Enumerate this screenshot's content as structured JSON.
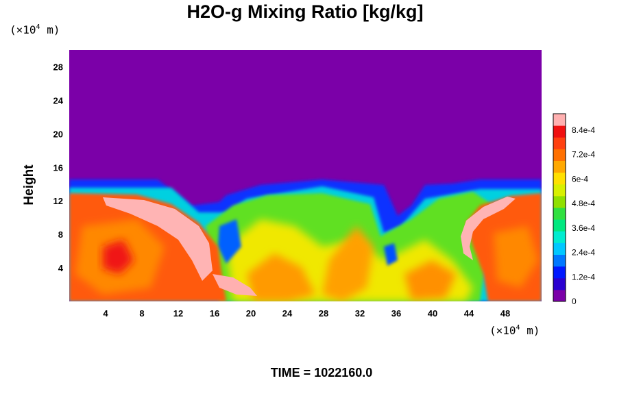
{
  "chart_data": {
    "type": "heatmap",
    "title": "H2O-g Mixing Ratio [kg/kg]",
    "ylabel": "Height",
    "xlabel": "",
    "x_unit": {
      "prefix": "(×10",
      "exp": "4",
      "suffix": " m)"
    },
    "y_unit": {
      "prefix": "(×10",
      "exp": "4",
      "suffix": " m)"
    },
    "xlim": [
      0,
      52
    ],
    "ylim": [
      0,
      30
    ],
    "x_ticks": [
      {
        "value": 4,
        "label": "4"
      },
      {
        "value": 8,
        "label": "8"
      },
      {
        "value": 12,
        "label": "12"
      },
      {
        "value": 16,
        "label": "16"
      },
      {
        "value": 20,
        "label": "20"
      },
      {
        "value": 24,
        "label": "24"
      },
      {
        "value": 28,
        "label": "28"
      },
      {
        "value": 32,
        "label": "32"
      },
      {
        "value": 36,
        "label": "36"
      },
      {
        "value": 40,
        "label": "40"
      },
      {
        "value": 44,
        "label": "44"
      },
      {
        "value": 48,
        "label": "48"
      }
    ],
    "y_ticks": [
      {
        "value": 4,
        "label": "4"
      },
      {
        "value": 8,
        "label": "8"
      },
      {
        "value": 12,
        "label": "12"
      },
      {
        "value": 16,
        "label": "16"
      },
      {
        "value": 20,
        "label": "20"
      },
      {
        "value": 24,
        "label": "24"
      },
      {
        "value": 28,
        "label": "28"
      }
    ],
    "colorbar": {
      "min": 0,
      "max": 0.00092,
      "ticks": [
        {
          "value": 0,
          "label": "0"
        },
        {
          "value": 0.00012,
          "label": "1.2e-4"
        },
        {
          "value": 0.00024,
          "label": "2.4e-4"
        },
        {
          "value": 0.00036,
          "label": "3.6e-4"
        },
        {
          "value": 0.00048,
          "label": "4.8e-4"
        },
        {
          "value": 0.0006,
          "label": "6e-4"
        },
        {
          "value": 0.00072,
          "label": "7.2e-4"
        },
        {
          "value": 0.00084,
          "label": "8.4e-4"
        }
      ],
      "colors": [
        "#7b00a8",
        "#2a00d0",
        "#0018ff",
        "#0078ff",
        "#00c8ff",
        "#00ecd0",
        "#00e880",
        "#30e040",
        "#90e000",
        "#d8f000",
        "#ffe000",
        "#ffa800",
        "#ff7000",
        "#ff4010",
        "#f01010",
        "#ffb0b0"
      ]
    },
    "regions": [
      {
        "name": "dry-upper-layer",
        "x": [
          0,
          52
        ],
        "y": [
          13.5,
          30
        ],
        "value": 0
      },
      {
        "name": "left-moist-core",
        "x": [
          0,
          16
        ],
        "y": [
          0,
          13
        ],
        "value": 0.00078
      },
      {
        "name": "central-mixed",
        "x": [
          16,
          42
        ],
        "y": [
          0,
          12
        ],
        "value": 0.00058
      },
      {
        "name": "right-moist-core",
        "x": [
          44,
          52
        ],
        "y": [
          0,
          13
        ],
        "value": 0.00078
      }
    ],
    "grid": false,
    "legend": "colorbar-right"
  },
  "footer": {
    "time_label": "TIME = 1022160.0"
  }
}
